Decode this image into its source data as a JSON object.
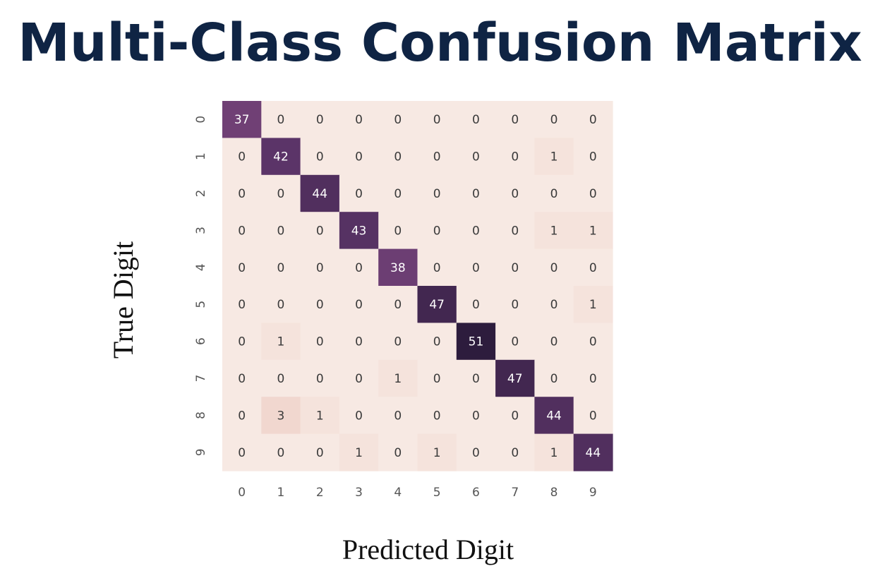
{
  "slide": {
    "title": "Multi-Class Confusion Matrix"
  },
  "chart_data": {
    "type": "heatmap",
    "xlabel": "Predicted Digit",
    "ylabel": "True Digit",
    "x_categories": [
      "0",
      "1",
      "2",
      "3",
      "4",
      "5",
      "6",
      "7",
      "8",
      "9"
    ],
    "y_categories": [
      "0",
      "1",
      "2",
      "3",
      "4",
      "5",
      "6",
      "7",
      "8",
      "9"
    ],
    "matrix": [
      [
        37,
        0,
        0,
        0,
        0,
        0,
        0,
        0,
        0,
        0
      ],
      [
        0,
        42,
        0,
        0,
        0,
        0,
        0,
        0,
        1,
        0
      ],
      [
        0,
        0,
        44,
        0,
        0,
        0,
        0,
        0,
        0,
        0
      ],
      [
        0,
        0,
        0,
        43,
        0,
        0,
        0,
        0,
        1,
        1
      ],
      [
        0,
        0,
        0,
        0,
        38,
        0,
        0,
        0,
        0,
        0
      ],
      [
        0,
        0,
        0,
        0,
        0,
        47,
        0,
        0,
        0,
        1
      ],
      [
        0,
        1,
        0,
        0,
        0,
        0,
        51,
        0,
        0,
        0
      ],
      [
        0,
        0,
        0,
        0,
        1,
        0,
        0,
        47,
        0,
        0
      ],
      [
        0,
        3,
        1,
        0,
        0,
        0,
        0,
        0,
        44,
        0
      ],
      [
        0,
        0,
        0,
        1,
        0,
        1,
        0,
        0,
        1,
        44
      ]
    ],
    "annotated": true,
    "colorbar": false,
    "grid": false,
    "colors": {
      "low": "#f7e9e3",
      "high": "#2d1c3d",
      "text_dark": "#3a3a3a",
      "text_light": "#ffffff"
    }
  }
}
